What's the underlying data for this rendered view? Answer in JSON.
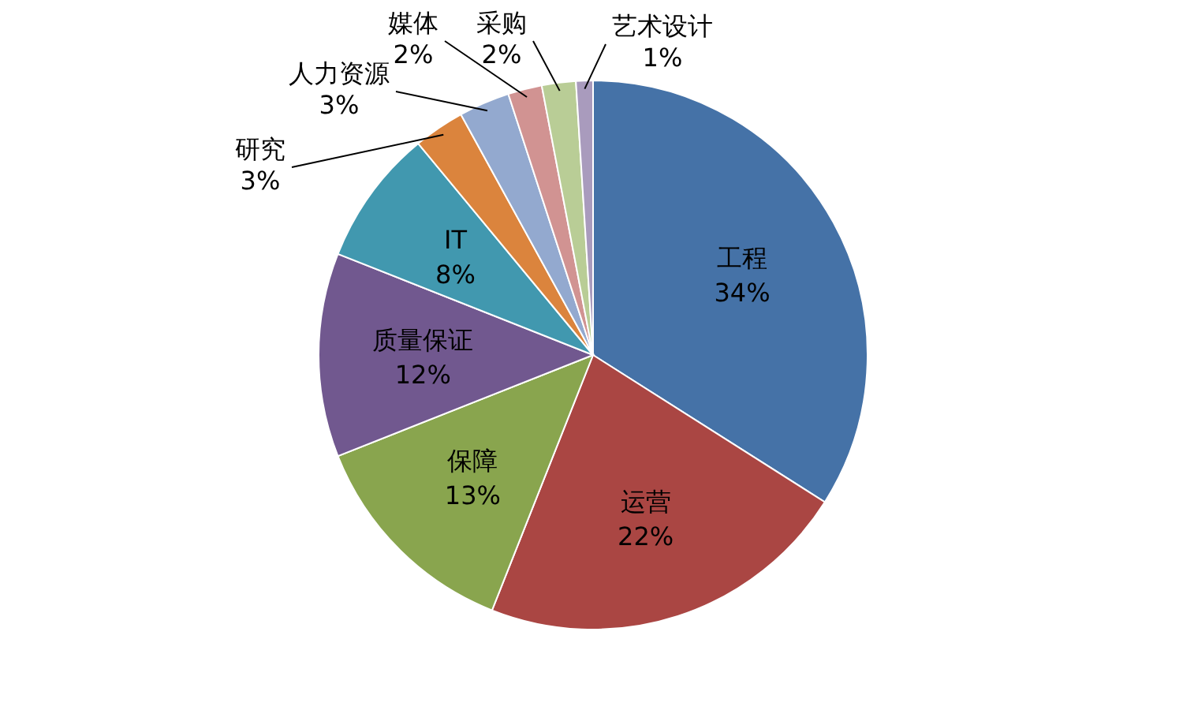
{
  "chart_data": {
    "type": "pie",
    "categories": [
      "工程",
      "运营",
      "保障",
      "质量保证",
      "IT",
      "研究",
      "人力资源",
      "媒体",
      "采购",
      "艺术设计"
    ],
    "values": [
      34,
      22,
      13,
      12,
      8,
      3,
      3,
      2,
      2,
      1
    ],
    "value_labels": [
      "34%",
      "22%",
      "13%",
      "12%",
      "8%",
      "3%",
      "3%",
      "2%",
      "2%",
      "1%"
    ],
    "colors": [
      "#4572a7",
      "#aa4643",
      "#89a54e",
      "#71588f",
      "#4198af",
      "#db843d",
      "#93a9cf",
      "#d19392",
      "#b9cd96",
      "#a99bbd"
    ]
  }
}
